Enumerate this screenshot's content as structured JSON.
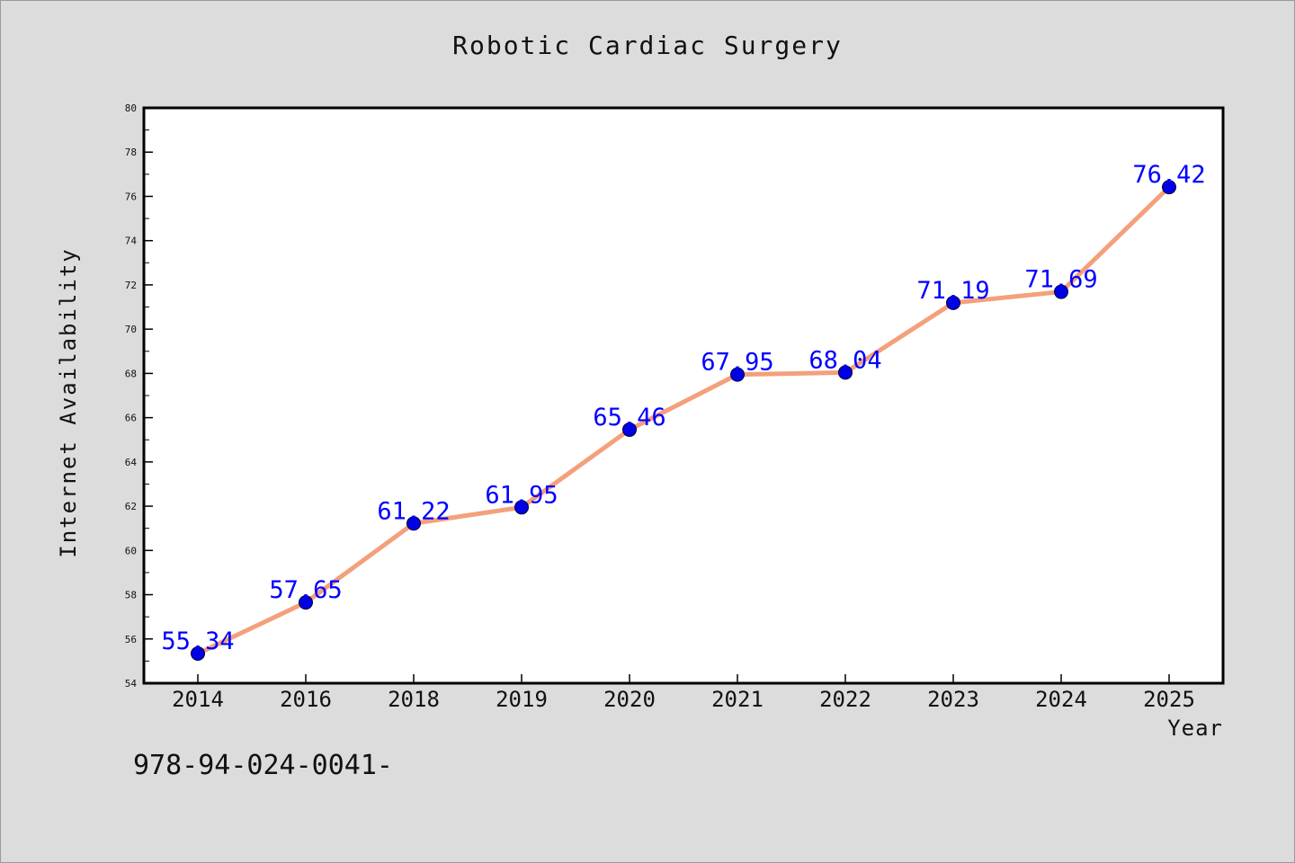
{
  "chart_data": {
    "type": "line",
    "title": "Robotic Cardiac Surgery",
    "xlabel": "Year",
    "ylabel": "Internet Availability",
    "categories": [
      "2014",
      "2016",
      "2018",
      "2019",
      "2020",
      "2021",
      "2022",
      "2023",
      "2024",
      "2025"
    ],
    "values": [
      55.34,
      57.65,
      61.22,
      61.95,
      65.46,
      67.95,
      68.04,
      71.19,
      71.69,
      76.42
    ],
    "data_labels": [
      "55.34",
      "57.65",
      "61.22",
      "61.95",
      "65.46",
      "67.95",
      "68.04",
      "71.19",
      "71.69",
      "76.42"
    ],
    "ylim": [
      54,
      80
    ],
    "yticks": [
      "54",
      "56",
      "58",
      "60",
      "62",
      "64",
      "66",
      "68",
      "70",
      "72",
      "74",
      "76",
      "78",
      "80"
    ],
    "grid": false,
    "line_color": "#f4a07c",
    "marker_color": "#0000e6",
    "label_color": "#0000ff"
  },
  "footnote": "978-94-024-0041-"
}
